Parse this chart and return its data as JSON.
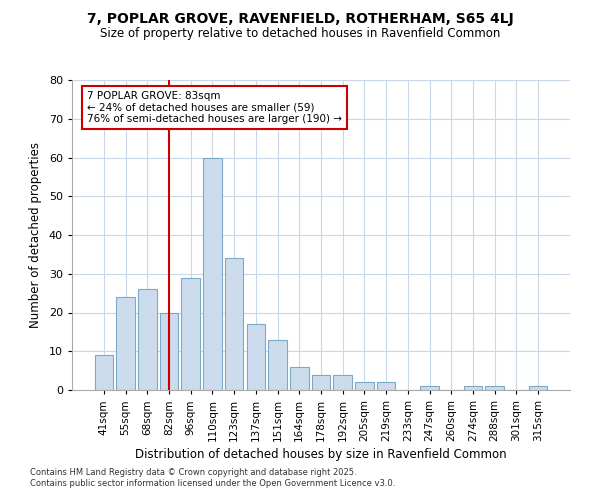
{
  "title": "7, POPLAR GROVE, RAVENFIELD, ROTHERHAM, S65 4LJ",
  "subtitle": "Size of property relative to detached houses in Ravenfield Common",
  "xlabel": "Distribution of detached houses by size in Ravenfield Common",
  "ylabel": "Number of detached properties",
  "bar_labels": [
    "41sqm",
    "55sqm",
    "68sqm",
    "82sqm",
    "96sqm",
    "110sqm",
    "123sqm",
    "137sqm",
    "151sqm",
    "164sqm",
    "178sqm",
    "192sqm",
    "205sqm",
    "219sqm",
    "233sqm",
    "247sqm",
    "260sqm",
    "274sqm",
    "288sqm",
    "301sqm",
    "315sqm"
  ],
  "bar_values": [
    9,
    24,
    26,
    20,
    29,
    60,
    34,
    17,
    13,
    6,
    4,
    4,
    2,
    2,
    0,
    1,
    0,
    1,
    1,
    0,
    1
  ],
  "bar_color": "#ccdcec",
  "bar_edge_color": "#7aaac8",
  "vline_x_index": 3,
  "vline_color": "#cc0000",
  "annotation_text": "7 POPLAR GROVE: 83sqm\n← 24% of detached houses are smaller (59)\n76% of semi-detached houses are larger (190) →",
  "annotation_box_color": "#ffffff",
  "annotation_box_edge": "#cc0000",
  "background_color": "#ffffff",
  "plot_bg_color": "#ffffff",
  "grid_color": "#c8d8e8",
  "footer_text": "Contains HM Land Registry data © Crown copyright and database right 2025.\nContains public sector information licensed under the Open Government Licence v3.0.",
  "ylim": [
    0,
    80
  ],
  "yticks": [
    0,
    10,
    20,
    30,
    40,
    50,
    60,
    70,
    80
  ]
}
